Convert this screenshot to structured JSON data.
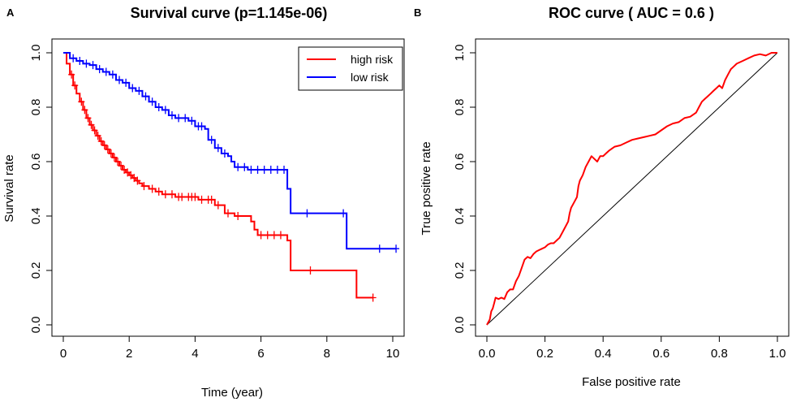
{
  "panels": {
    "a": "A",
    "b": "B"
  },
  "chart_data": [
    {
      "type": "line",
      "title": "Survival curve (p=1.145e-06)",
      "xlabel": "Time (year)",
      "ylabel": "Survival rate",
      "xlim": [
        0,
        10
      ],
      "ylim": [
        0,
        1
      ],
      "x_ticks": [
        "0",
        "2",
        "4",
        "6",
        "8",
        "10"
      ],
      "y_ticks": [
        "0.0",
        "0.2",
        "0.4",
        "0.6",
        "0.8",
        "1.0"
      ],
      "legend_position": "top-right",
      "series": [
        {
          "name": "high risk",
          "color": "#ff0000",
          "steps": [
            [
              0,
              1.0
            ],
            [
              0.1,
              0.96
            ],
            [
              0.2,
              0.92
            ],
            [
              0.3,
              0.88
            ],
            [
              0.4,
              0.85
            ],
            [
              0.5,
              0.82
            ],
            [
              0.6,
              0.79
            ],
            [
              0.7,
              0.76
            ],
            [
              0.8,
              0.735
            ],
            [
              0.9,
              0.715
            ],
            [
              1.0,
              0.695
            ],
            [
              1.1,
              0.675
            ],
            [
              1.2,
              0.66
            ],
            [
              1.3,
              0.645
            ],
            [
              1.4,
              0.63
            ],
            [
              1.5,
              0.615
            ],
            [
              1.6,
              0.6
            ],
            [
              1.7,
              0.585
            ],
            [
              1.8,
              0.57
            ],
            [
              1.9,
              0.56
            ],
            [
              2.0,
              0.55
            ],
            [
              2.1,
              0.54
            ],
            [
              2.2,
              0.53
            ],
            [
              2.3,
              0.52
            ],
            [
              2.4,
              0.51
            ],
            [
              2.6,
              0.5
            ],
            [
              2.8,
              0.49
            ],
            [
              3.0,
              0.48
            ],
            [
              3.4,
              0.47
            ],
            [
              4.1,
              0.46
            ],
            [
              4.6,
              0.44
            ],
            [
              4.9,
              0.41
            ],
            [
              5.2,
              0.4
            ],
            [
              5.7,
              0.38
            ],
            [
              5.8,
              0.35
            ],
            [
              5.9,
              0.33
            ],
            [
              6.8,
              0.31
            ],
            [
              6.9,
              0.2
            ],
            [
              8.9,
              0.1
            ],
            [
              9.4,
              0.1
            ]
          ],
          "censor_times": [
            0.25,
            0.35,
            0.55,
            0.65,
            0.75,
            0.85,
            0.95,
            1.05,
            1.15,
            1.25,
            1.35,
            1.45,
            1.55,
            1.65,
            1.75,
            1.85,
            1.95,
            2.05,
            2.15,
            2.25,
            2.45,
            2.7,
            2.9,
            3.1,
            3.3,
            3.5,
            3.6,
            3.8,
            3.9,
            4.0,
            4.2,
            4.4,
            4.5,
            4.7,
            5.0,
            5.3,
            6.0,
            6.2,
            6.4,
            6.6,
            7.5,
            9.4
          ]
        },
        {
          "name": "low risk",
          "color": "#0000ff",
          "steps": [
            [
              0,
              1.0
            ],
            [
              0.2,
              0.98
            ],
            [
              0.4,
              0.97
            ],
            [
              0.6,
              0.96
            ],
            [
              0.8,
              0.955
            ],
            [
              1.0,
              0.94
            ],
            [
              1.2,
              0.93
            ],
            [
              1.4,
              0.92
            ],
            [
              1.6,
              0.9
            ],
            [
              1.8,
              0.89
            ],
            [
              2.0,
              0.87
            ],
            [
              2.2,
              0.86
            ],
            [
              2.4,
              0.84
            ],
            [
              2.6,
              0.82
            ],
            [
              2.8,
              0.8
            ],
            [
              3.0,
              0.79
            ],
            [
              3.2,
              0.77
            ],
            [
              3.4,
              0.76
            ],
            [
              3.8,
              0.75
            ],
            [
              4.0,
              0.73
            ],
            [
              4.3,
              0.72
            ],
            [
              4.4,
              0.68
            ],
            [
              4.6,
              0.65
            ],
            [
              4.8,
              0.63
            ],
            [
              5.0,
              0.62
            ],
            [
              5.1,
              0.6
            ],
            [
              5.2,
              0.58
            ],
            [
              5.6,
              0.57
            ],
            [
              6.8,
              0.5
            ],
            [
              6.9,
              0.41
            ],
            [
              8.6,
              0.28
            ],
            [
              10.1,
              0.28
            ]
          ],
          "censor_times": [
            0.3,
            0.5,
            0.7,
            0.9,
            1.1,
            1.3,
            1.5,
            1.7,
            1.9,
            2.1,
            2.3,
            2.5,
            2.7,
            2.9,
            3.1,
            3.3,
            3.5,
            3.7,
            3.9,
            4.1,
            4.2,
            4.5,
            4.7,
            4.9,
            5.3,
            5.5,
            5.7,
            5.9,
            6.1,
            6.3,
            6.5,
            6.7,
            7.4,
            8.5,
            9.6,
            10.1
          ]
        }
      ]
    },
    {
      "type": "line",
      "title": "ROC curve ( AUC =  0.6 )",
      "xlabel": "False positive rate",
      "ylabel": "True positive rate",
      "xlim": [
        0,
        1
      ],
      "ylim": [
        0,
        1
      ],
      "x_ticks": [
        "0.0",
        "0.2",
        "0.4",
        "0.6",
        "0.8",
        "1.0"
      ],
      "y_ticks": [
        "0.0",
        "0.2",
        "0.4",
        "0.6",
        "0.8",
        "1.0"
      ],
      "diagonal": [
        [
          0,
          0
        ],
        [
          1,
          1
        ]
      ],
      "series": [
        {
          "name": "ROC",
          "color": "#ff0000",
          "points": [
            [
              0,
              0
            ],
            [
              0.01,
              0.02
            ],
            [
              0.015,
              0.05
            ],
            [
              0.02,
              0.06
            ],
            [
              0.025,
              0.08
            ],
            [
              0.03,
              0.1
            ],
            [
              0.04,
              0.095
            ],
            [
              0.05,
              0.1
            ],
            [
              0.06,
              0.095
            ],
            [
              0.07,
              0.12
            ],
            [
              0.08,
              0.13
            ],
            [
              0.09,
              0.13
            ],
            [
              0.1,
              0.16
            ],
            [
              0.11,
              0.18
            ],
            [
              0.12,
              0.21
            ],
            [
              0.13,
              0.24
            ],
            [
              0.14,
              0.25
            ],
            [
              0.15,
              0.245
            ],
            [
              0.16,
              0.26
            ],
            [
              0.17,
              0.27
            ],
            [
              0.18,
              0.275
            ],
            [
              0.19,
              0.28
            ],
            [
              0.2,
              0.285
            ],
            [
              0.21,
              0.295
            ],
            [
              0.22,
              0.3
            ],
            [
              0.23,
              0.3
            ],
            [
              0.24,
              0.31
            ],
            [
              0.25,
              0.32
            ],
            [
              0.26,
              0.34
            ],
            [
              0.27,
              0.36
            ],
            [
              0.28,
              0.38
            ],
            [
              0.285,
              0.41
            ],
            [
              0.29,
              0.43
            ],
            [
              0.3,
              0.45
            ],
            [
              0.31,
              0.47
            ],
            [
              0.315,
              0.51
            ],
            [
              0.32,
              0.53
            ],
            [
              0.33,
              0.55
            ],
            [
              0.34,
              0.58
            ],
            [
              0.35,
              0.6
            ],
            [
              0.36,
              0.62
            ],
            [
              0.37,
              0.61
            ],
            [
              0.38,
              0.6
            ],
            [
              0.39,
              0.62
            ],
            [
              0.4,
              0.62
            ],
            [
              0.41,
              0.63
            ],
            [
              0.42,
              0.64
            ],
            [
              0.44,
              0.655
            ],
            [
              0.46,
              0.66
            ],
            [
              0.48,
              0.67
            ],
            [
              0.5,
              0.68
            ],
            [
              0.52,
              0.685
            ],
            [
              0.54,
              0.69
            ],
            [
              0.56,
              0.695
            ],
            [
              0.58,
              0.7
            ],
            [
              0.6,
              0.715
            ],
            [
              0.62,
              0.73
            ],
            [
              0.64,
              0.74
            ],
            [
              0.66,
              0.745
            ],
            [
              0.68,
              0.76
            ],
            [
              0.7,
              0.765
            ],
            [
              0.72,
              0.78
            ],
            [
              0.73,
              0.8
            ],
            [
              0.74,
              0.82
            ],
            [
              0.75,
              0.83
            ],
            [
              0.76,
              0.84
            ],
            [
              0.77,
              0.85
            ],
            [
              0.78,
              0.86
            ],
            [
              0.79,
              0.87
            ],
            [
              0.8,
              0.88
            ],
            [
              0.81,
              0.87
            ],
            [
              0.82,
              0.9
            ],
            [
              0.83,
              0.92
            ],
            [
              0.84,
              0.94
            ],
            [
              0.85,
              0.95
            ],
            [
              0.86,
              0.96
            ],
            [
              0.88,
              0.97
            ],
            [
              0.9,
              0.98
            ],
            [
              0.92,
              0.99
            ],
            [
              0.94,
              0.995
            ],
            [
              0.96,
              0.99
            ],
            [
              0.98,
              1.0
            ],
            [
              1.0,
              1.0
            ]
          ]
        }
      ]
    }
  ]
}
